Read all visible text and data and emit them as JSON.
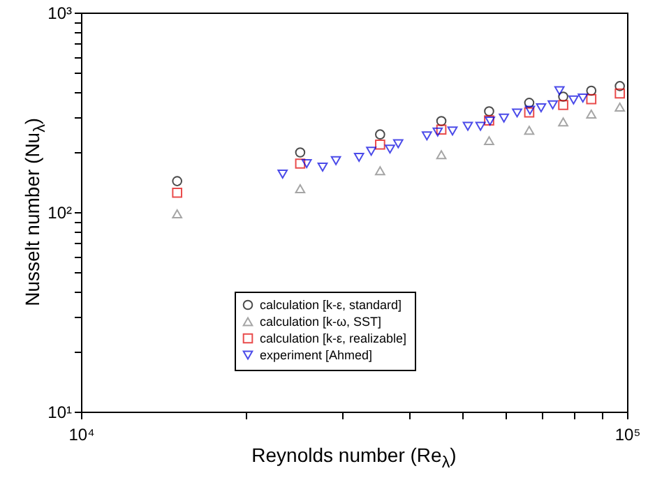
{
  "chart_data": {
    "type": "scatter",
    "xlabel": "Reynolds number (Re$_{λ}$)",
    "ylabel": "Nusselt number (Nu$_{λ}$)",
    "log": "xy",
    "grid": false,
    "legend": "bottom",
    "xlim": [
      10000,
      100000
    ],
    "ylim": [
      10,
      1000
    ],
    "xticks": [
      {
        "value": 10000,
        "label": "10⁴"
      },
      {
        "value": 20000,
        "label": null
      },
      {
        "value": 30000,
        "label": null
      },
      {
        "value": 40000,
        "label": null
      },
      {
        "value": 50000,
        "label": null
      },
      {
        "value": 60000,
        "label": null
      },
      {
        "value": 70000,
        "label": null
      },
      {
        "value": 80000,
        "label": null
      },
      {
        "value": 90000,
        "label": null
      },
      {
        "value": 100000,
        "label": "10⁵"
      }
    ],
    "yticks": [
      {
        "value": 10,
        "label": "10¹"
      },
      {
        "value": 20,
        "label": null
      },
      {
        "value": 30,
        "label": null
      },
      {
        "value": 40,
        "label": null
      },
      {
        "value": 50,
        "label": null
      },
      {
        "value": 60,
        "label": null
      },
      {
        "value": 70,
        "label": null
      },
      {
        "value": 80,
        "label": null
      },
      {
        "value": 90,
        "label": null
      },
      {
        "value": 100,
        "label": "10²"
      },
      {
        "value": 200,
        "label": null
      },
      {
        "value": 300,
        "label": null
      },
      {
        "value": 400,
        "label": null
      },
      {
        "value": 500,
        "label": null
      },
      {
        "value": 600,
        "label": null
      },
      {
        "value": 700,
        "label": null
      },
      {
        "value": 800,
        "label": null
      },
      {
        "value": 900,
        "label": null
      },
      {
        "value": 1000,
        "label": "10³"
      }
    ],
    "x": [
      15000,
      25200,
      35300,
      45700,
      55900,
      66200,
      76400,
      86000,
      97000
    ],
    "series": [
      {
        "name": "calculation [k-ε, standard]",
        "color": "#000000",
        "marker": "circle",
        "values": [
          143,
          199,
          245,
          286,
          320,
          353,
          379,
          406,
          428
        ]
      },
      {
        "name": "calculation [k-ω, SST]",
        "color": "#808080",
        "marker": "triangle",
        "values": [
          98,
          131,
          161,
          194,
          228,
          257,
          283,
          310,
          336
        ]
      },
      {
        "name": "calculation [k-ε, realizable]",
        "color": "#e00000",
        "marker": "square",
        "values": [
          125,
          175,
          218,
          259,
          288,
          316,
          344,
          368,
          393
        ]
      },
      {
        "name": "experiment [Ahmed]",
        "color": "#0000e0",
        "marker": "triangle-down",
        "x": [
          23400,
          25900,
          27700,
          29300,
          32300,
          34000,
          36800,
          38100,
          43000,
          45000,
          47900,
          51100,
          53900,
          56100,
          59500,
          62900,
          66400,
          69600,
          73100,
          75200,
          79800,
          83000
        ],
        "values": [
          155,
          175,
          168,
          181,
          188,
          202,
          207,
          220,
          241,
          252,
          255,
          269,
          269,
          286,
          296,
          314,
          324,
          333,
          345,
          406,
          365,
          373
        ]
      }
    ]
  }
}
